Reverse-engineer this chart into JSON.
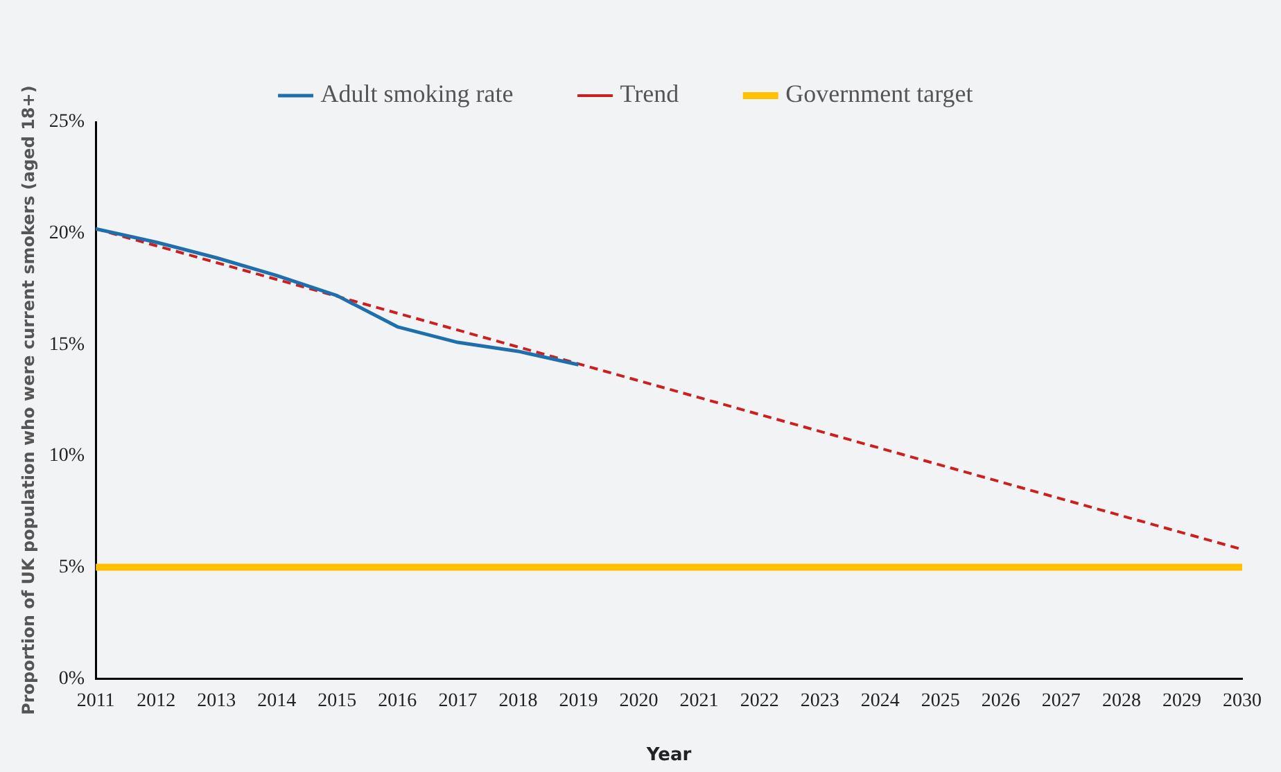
{
  "chart_data": {
    "type": "line",
    "xlabel": "Year",
    "ylabel": "Proportion of UK population who were current smokers (aged 18+)",
    "xlim": [
      2011,
      2030
    ],
    "xticks": [
      2011,
      2012,
      2013,
      2014,
      2015,
      2016,
      2017,
      2018,
      2019,
      2020,
      2021,
      2022,
      2023,
      2024,
      2025,
      2026,
      2027,
      2028,
      2029,
      2030
    ],
    "ylim": [
      0,
      25
    ],
    "yticks": [
      {
        "value": 0,
        "label": "0%"
      },
      {
        "value": 5,
        "label": "5%"
      },
      {
        "value": 10,
        "label": "10%"
      },
      {
        "value": 15,
        "label": "15%"
      },
      {
        "value": 20,
        "label": "20%"
      },
      {
        "value": 25,
        "label": "25%"
      }
    ],
    "grid": false,
    "legend": "top",
    "marker": "none",
    "series": [
      {
        "name": "Adult smoking rate",
        "color": "#1f6fad",
        "line_style": "solid",
        "x": [
          2011,
          2012,
          2013,
          2014,
          2015,
          2016,
          2017,
          2018,
          2019
        ],
        "values": [
          20.2,
          19.6,
          18.9,
          18.1,
          17.2,
          15.8,
          15.1,
          14.7,
          14.1
        ]
      },
      {
        "name": "Trend",
        "color": "#cc1f1f",
        "line_style": "dashed",
        "x": [
          2011,
          2030
        ],
        "values": [
          20.2,
          5.8
        ]
      },
      {
        "name": "Government target",
        "color": "#ffc000",
        "line_style": "solid",
        "x": [
          2011,
          2030
        ],
        "values": [
          5,
          5
        ]
      }
    ]
  }
}
